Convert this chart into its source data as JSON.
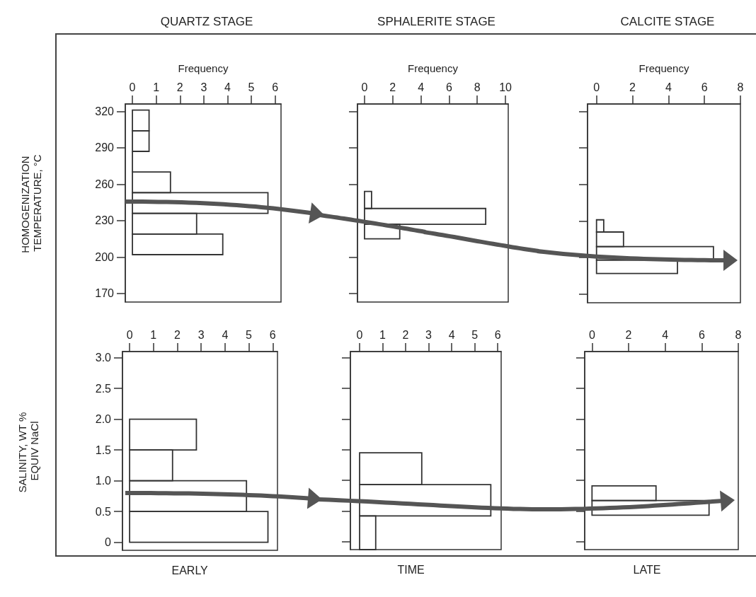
{
  "chart_data": [
    {
      "type": "histogram",
      "orientation": "horizontal",
      "title": "QUARTZ STAGE",
      "xlabel": "Frequency",
      "ylabel": "HOMOGENIZATION TEMPERATURE, °C",
      "color": "#333333",
      "bins": [
        202,
        219,
        236,
        253,
        270,
        287,
        304,
        321
      ],
      "values": [
        3.8,
        2.7,
        5.7,
        1.6,
        0,
        0.7,
        0.7
      ],
      "xlim": [
        -0.3,
        6.25
      ],
      "xticks": [
        0,
        1,
        2,
        3,
        4,
        5,
        6
      ],
      "ylim": [
        163,
        326
      ],
      "yticks": [
        170,
        200,
        230,
        260,
        290,
        320
      ]
    },
    {
      "type": "histogram",
      "orientation": "horizontal",
      "title": "SPHALERITE STAGE",
      "xlabel": "Frequency",
      "color": "#333333",
      "bins": [
        215,
        227,
        240,
        254
      ],
      "values": [
        2.5,
        8.6,
        0.5
      ],
      "xlim": [
        -0.5,
        10.2
      ],
      "xticks": [
        0,
        2,
        4,
        6,
        8,
        10
      ],
      "ylim": [
        163,
        326
      ],
      "yticks": [
        170,
        200,
        230,
        260,
        290,
        320
      ],
      "tick_labels": "x"
    },
    {
      "type": "histogram",
      "orientation": "horizontal",
      "title": "CALCITE STAGE",
      "xlabel": "Frequency",
      "color": "#333333",
      "bins": [
        187,
        198,
        209,
        221,
        231
      ],
      "values": [
        4.5,
        6.5,
        1.5,
        0.4
      ],
      "xlim": [
        -0.5,
        8
      ],
      "xticks": [
        0,
        2,
        4,
        6,
        8
      ],
      "ylim": [
        163,
        326
      ],
      "yticks": [
        170,
        200,
        230,
        260,
        290,
        320
      ],
      "tick_labels": "x"
    },
    {
      "type": "histogram",
      "orientation": "horizontal",
      "ylabel": "SALINITY, WT % EQUIV NaCl",
      "color": "#333333",
      "annotations": [
        "EARLY"
      ],
      "bins": [
        0,
        0.5,
        1.0,
        1.5,
        2.0
      ],
      "values": [
        5.8,
        4.9,
        1.8,
        2.8
      ],
      "xlim": [
        -0.3,
        6.2
      ],
      "xticks": [
        0,
        1,
        2,
        3,
        4,
        5,
        6
      ],
      "ylim": [
        -0.13,
        3.1
      ],
      "yticks": [
        0,
        0.5,
        {
          "value": 1,
          "label": "1.0"
        },
        1.5,
        {
          "value": 2,
          "label": "2.0"
        },
        2.5,
        {
          "value": 3,
          "label": "3.0"
        }
      ]
    },
    {
      "type": "histogram",
      "orientation": "horizontal",
      "color": "#333333",
      "annotations": [
        "TIME"
      ],
      "bins": [
        -0.13,
        0.42,
        0.93,
        1.45
      ],
      "values": [
        0.7,
        5.7,
        2.7
      ],
      "xlim": [
        -0.4,
        6.15
      ],
      "xticks": [
        0,
        1,
        2,
        3,
        4,
        5,
        6
      ],
      "ylim": [
        -0.13,
        3.1
      ],
      "yticks": [
        0,
        0.5,
        1,
        1.5,
        2,
        2.5,
        3
      ],
      "tick_labels": "x"
    },
    {
      "type": "histogram",
      "orientation": "horizontal",
      "color": "#333333",
      "annotations": [
        "LATE"
      ],
      "bins": [
        0.43,
        0.67,
        0.91
      ],
      "values": [
        6.4,
        3.5
      ],
      "xlim": [
        -0.4,
        8
      ],
      "xticks": [
        0,
        2,
        4,
        6,
        8
      ],
      "ylim": [
        -0.13,
        3.1
      ],
      "yticks": [
        0,
        0.5,
        1,
        1.5,
        2,
        2.5,
        3
      ],
      "tick_labels": "x"
    }
  ]
}
